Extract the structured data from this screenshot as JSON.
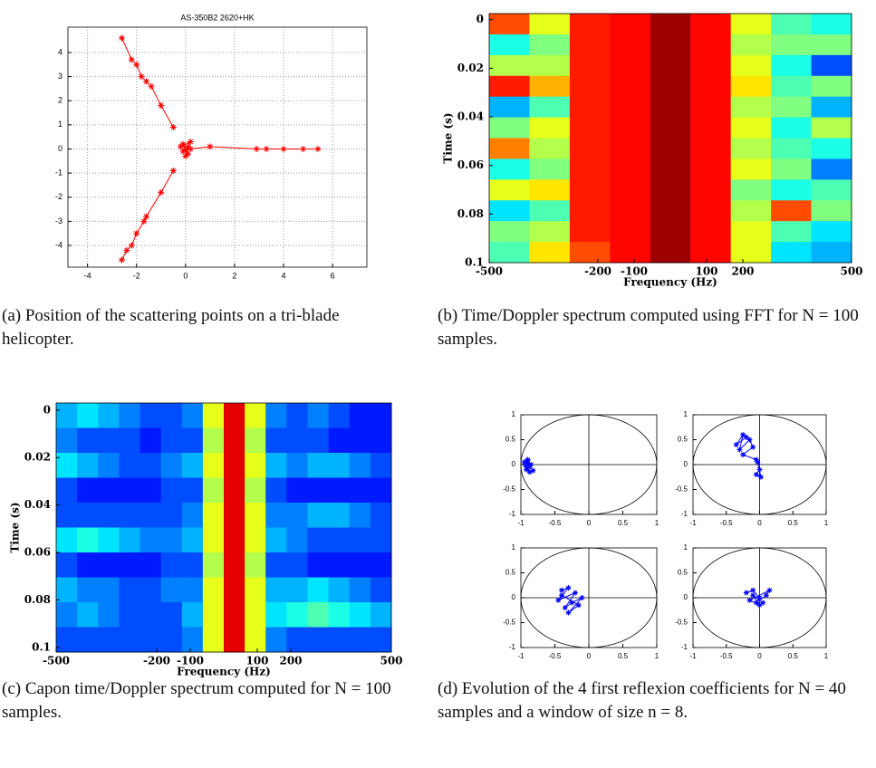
{
  "chart_data": [
    {
      "type": "scatter",
      "title": "AS-350B2 2620+HK",
      "grid": true,
      "xlim": [
        -4.8,
        7.4
      ],
      "xticks": [
        -4,
        -2,
        0,
        2,
        4,
        6
      ],
      "ylim": [
        -4.9,
        5.05
      ],
      "yticks": [
        -4,
        -3,
        -2,
        -1,
        0,
        1,
        2,
        3,
        4
      ],
      "series": [
        {
          "color": "#ff0000",
          "x": [
            -0.5,
            -1.0,
            -1.4,
            -1.6,
            -1.8,
            -2.0,
            -2.2,
            -2.6
          ],
          "y": [
            0.9,
            1.8,
            2.6,
            2.8,
            3.0,
            3.5,
            3.7,
            4.6
          ]
        },
        {
          "color": "#ff0000",
          "x": [
            -0.5,
            -1.0,
            -1.6,
            -1.7,
            -2.0,
            -2.2,
            -2.4,
            -2.6
          ],
          "y": [
            -0.9,
            -1.8,
            -2.8,
            -3.0,
            -3.5,
            -4.0,
            -4.2,
            -4.6
          ]
        },
        {
          "color": "#ff0000",
          "x": [
            0.2,
            1.0,
            2.9,
            3.3,
            4.0,
            4.8,
            5.4
          ],
          "y": [
            0,
            0.1,
            0,
            0,
            0,
            0,
            0
          ]
        },
        {
          "color": "#ff0000",
          "x": [
            0,
            -0.1,
            0.1,
            -0.2,
            0.2,
            0,
            0.1,
            -0.1
          ],
          "y": [
            0,
            0.2,
            -0.2,
            0.1,
            0.3,
            -0.3,
            0.1,
            -0.1
          ]
        }
      ]
    },
    {
      "type": "heatmap",
      "x_label": "Frequency (Hz)",
      "y_label": "Time (s)",
      "y_inverted": true,
      "xlim": [
        -500,
        500
      ],
      "xticks": [
        -500,
        -200,
        -100,
        100,
        200,
        500
      ],
      "ylim": [
        -0.0025,
        0.1
      ],
      "yticks": [
        0,
        0.02,
        0.04,
        0.06,
        0.08,
        0.1
      ],
      "z": [
        [
          0.8,
          0.6,
          0.85,
          0.87,
          0.97,
          0.87,
          0.6,
          0.45,
          0.4
        ],
        [
          0.4,
          0.5,
          0.85,
          0.87,
          0.97,
          0.87,
          0.55,
          0.5,
          0.5
        ],
        [
          0.55,
          0.55,
          0.85,
          0.87,
          0.97,
          0.87,
          0.6,
          0.4,
          0.2
        ],
        [
          0.85,
          0.7,
          0.85,
          0.87,
          0.97,
          0.87,
          0.65,
          0.45,
          0.5
        ],
        [
          0.3,
          0.45,
          0.85,
          0.87,
          0.97,
          0.87,
          0.55,
          0.5,
          0.3
        ],
        [
          0.5,
          0.6,
          0.85,
          0.87,
          0.97,
          0.87,
          0.6,
          0.4,
          0.55
        ],
        [
          0.75,
          0.55,
          0.85,
          0.87,
          0.97,
          0.87,
          0.55,
          0.45,
          0.4
        ],
        [
          0.4,
          0.5,
          0.85,
          0.87,
          0.97,
          0.87,
          0.6,
          0.5,
          0.25
        ],
        [
          0.6,
          0.65,
          0.85,
          0.87,
          0.97,
          0.87,
          0.5,
          0.4,
          0.45
        ],
        [
          0.35,
          0.45,
          0.85,
          0.87,
          0.97,
          0.87,
          0.55,
          0.8,
          0.5
        ],
        [
          0.5,
          0.55,
          0.85,
          0.87,
          0.97,
          0.87,
          0.6,
          0.45,
          0.35
        ],
        [
          0.45,
          0.65,
          0.8,
          0.87,
          0.97,
          0.87,
          0.6,
          0.35,
          0.3
        ]
      ]
    },
    {
      "type": "heatmap",
      "x_label": "Frequency (Hz)",
      "y_label": "Time (s)",
      "y_inverted": true,
      "xlim": [
        -500,
        500
      ],
      "xticks": [
        -500,
        -200,
        -100,
        100,
        200,
        500
      ],
      "ylim": [
        -0.003,
        0.102
      ],
      "yticks": [
        0,
        0.02,
        0.04,
        0.06,
        0.08,
        0.1
      ],
      "z": [
        [
          0.3,
          0.35,
          0.3,
          0.25,
          0.2,
          0.2,
          0.25,
          0.6,
          0.9,
          0.6,
          0.25,
          0.2,
          0.25,
          0.2,
          0.15,
          0.15
        ],
        [
          0.25,
          0.2,
          0.2,
          0.2,
          0.15,
          0.2,
          0.2,
          0.55,
          0.9,
          0.55,
          0.2,
          0.2,
          0.2,
          0.15,
          0.15,
          0.15
        ],
        [
          0.35,
          0.3,
          0.25,
          0.2,
          0.2,
          0.25,
          0.3,
          0.6,
          0.9,
          0.6,
          0.3,
          0.25,
          0.3,
          0.3,
          0.25,
          0.2
        ],
        [
          0.2,
          0.15,
          0.15,
          0.15,
          0.15,
          0.2,
          0.2,
          0.55,
          0.9,
          0.55,
          0.2,
          0.15,
          0.15,
          0.15,
          0.15,
          0.15
        ],
        [
          0.2,
          0.2,
          0.2,
          0.2,
          0.2,
          0.2,
          0.25,
          0.6,
          0.9,
          0.6,
          0.25,
          0.25,
          0.3,
          0.3,
          0.25,
          0.2
        ],
        [
          0.35,
          0.4,
          0.35,
          0.3,
          0.25,
          0.25,
          0.3,
          0.6,
          0.9,
          0.6,
          0.3,
          0.25,
          0.2,
          0.2,
          0.2,
          0.2
        ],
        [
          0.2,
          0.15,
          0.15,
          0.15,
          0.15,
          0.2,
          0.2,
          0.55,
          0.9,
          0.55,
          0.2,
          0.2,
          0.15,
          0.15,
          0.15,
          0.15
        ],
        [
          0.3,
          0.25,
          0.25,
          0.2,
          0.2,
          0.25,
          0.25,
          0.6,
          0.9,
          0.6,
          0.3,
          0.3,
          0.35,
          0.3,
          0.25,
          0.2
        ],
        [
          0.25,
          0.3,
          0.25,
          0.2,
          0.2,
          0.2,
          0.3,
          0.6,
          0.9,
          0.6,
          0.35,
          0.4,
          0.45,
          0.4,
          0.35,
          0.3
        ],
        [
          0.2,
          0.2,
          0.2,
          0.2,
          0.2,
          0.2,
          0.25,
          0.6,
          0.9,
          0.6,
          0.25,
          0.2,
          0.2,
          0.2,
          0.2,
          0.2
        ]
      ]
    },
    {
      "type": "scatter",
      "xlim": [
        -1,
        1
      ],
      "xticks": [
        -1,
        -0.5,
        0,
        0.5,
        1
      ],
      "ylim": [
        -1,
        1
      ],
      "yticks": [
        -1,
        -0.5,
        0,
        0.5,
        1
      ],
      "series": [
        {
          "color": "#0000ff",
          "x": [
            -0.95,
            -0.9,
            -0.88,
            -0.92,
            -0.85,
            -0.9,
            -0.93,
            -0.87,
            -0.82,
            -0.9
          ],
          "y": [
            0.05,
            0.1,
            -0.05,
            -0.1,
            0,
            0.08,
            -0.02,
            -0.15,
            -0.12,
            0.02
          ]
        }
      ]
    },
    {
      "type": "scatter",
      "xlim": [
        -1,
        1
      ],
      "xticks": [
        -1,
        -0.5,
        0,
        0.5,
        1
      ],
      "ylim": [
        -1,
        1
      ],
      "yticks": [
        -1,
        -0.5,
        0,
        0.5,
        1
      ],
      "series": [
        {
          "color": "#0000ff",
          "x": [
            -0.2,
            -0.35,
            -0.25,
            -0.3,
            -0.15,
            -0.1,
            -0.25,
            -0.05,
            0,
            -0.05,
            0.02,
            -0.03
          ],
          "y": [
            0.55,
            0.4,
            0.6,
            0.3,
            0.5,
            0.35,
            0.2,
            0.1,
            -0.1,
            -0.2,
            -0.25,
            0.05
          ]
        }
      ]
    },
    {
      "type": "scatter",
      "xlim": [
        -1,
        1
      ],
      "xticks": [
        -1,
        -0.5,
        0,
        0.5,
        1
      ],
      "ylim": [
        -1,
        1
      ],
      "yticks": [
        -1,
        -0.5,
        0,
        0.5,
        1
      ],
      "series": [
        {
          "color": "#0000ff",
          "x": [
            -0.4,
            -0.3,
            -0.45,
            -0.2,
            -0.35,
            -0.25,
            -0.1,
            -0.3,
            -0.15,
            -0.4
          ],
          "y": [
            0.15,
            0.2,
            -0.05,
            0.1,
            -0.2,
            -0.1,
            0,
            -0.3,
            -0.15,
            0.05
          ]
        }
      ]
    },
    {
      "type": "scatter",
      "xlim": [
        -1,
        1
      ],
      "xticks": [
        -1,
        -0.5,
        0,
        0.5,
        1
      ],
      "ylim": [
        -1,
        1
      ],
      "yticks": [
        -1,
        -0.5,
        0,
        0.5,
        1
      ],
      "series": [
        {
          "color": "#0000ff",
          "x": [
            -0.2,
            -0.1,
            0,
            -0.05,
            0.1,
            0.15,
            -0.15,
            0,
            -0.1,
            0.05
          ],
          "y": [
            0.1,
            0.15,
            0,
            -0.1,
            0.05,
            0.15,
            -0.05,
            -0.15,
            0.05,
            -0.1
          ]
        }
      ]
    }
  ],
  "captions": [
    "(a) Position of the scattering points on a tri-blade helicopter.",
    "(b) Time/Doppler spectrum computed using FFT for N = 100 samples.",
    "(c) Capon time/Doppler spectrum computed for N = 100 samples.",
    "(d) Evolution of the 4 first reflexion coefficients for N = 40 samples and a window of size n = 8."
  ]
}
